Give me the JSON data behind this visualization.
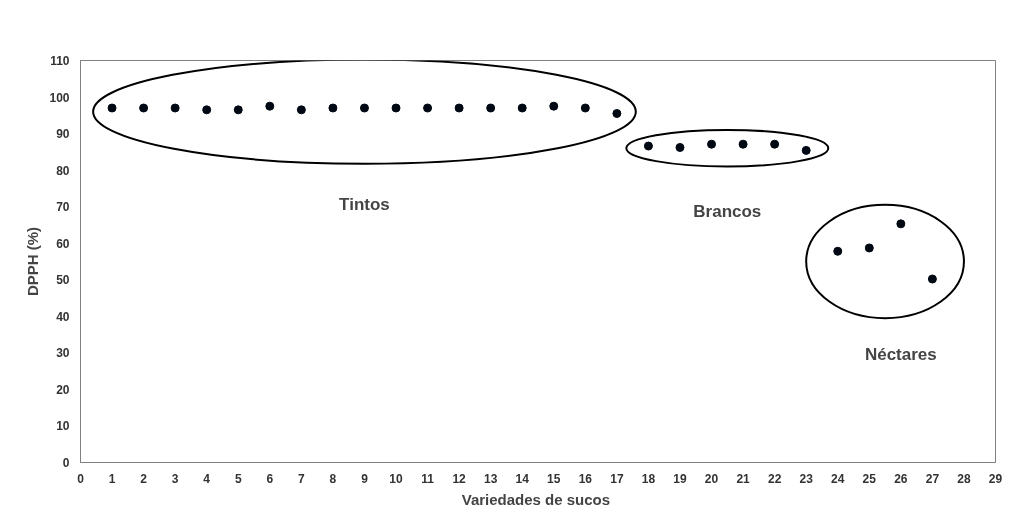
{
  "chart_data": {
    "type": "scatter",
    "xlabel": "Variedades  de sucos",
    "ylabel": "DPPH (%)",
    "x": [
      1,
      2,
      3,
      4,
      5,
      6,
      7,
      8,
      9,
      10,
      11,
      12,
      13,
      14,
      15,
      16,
      17,
      18,
      19,
      20,
      21,
      22,
      23,
      24,
      25,
      26,
      27
    ],
    "series": [
      {
        "color": "#000814",
        "values": [
          97,
          97,
          97,
          96.5,
          96.5,
          97.5,
          96.5,
          97,
          97,
          97,
          97,
          97,
          97,
          97,
          97.5,
          97,
          95.5,
          86.6,
          86.2,
          87.1,
          87.1,
          87.1,
          85.4,
          57.8,
          58.7,
          65.3,
          50.2
        ]
      }
    ],
    "xlim": [
      0,
      29
    ],
    "xticks": [
      0,
      1,
      2,
      3,
      4,
      5,
      6,
      7,
      8,
      9,
      10,
      11,
      12,
      13,
      14,
      15,
      16,
      17,
      18,
      19,
      20,
      21,
      22,
      23,
      24,
      25,
      26,
      27,
      28,
      29
    ],
    "ylim": [
      0,
      110
    ],
    "yticks": [
      0,
      10,
      20,
      30,
      40,
      50,
      60,
      70,
      80,
      90,
      100,
      110
    ],
    "grid": false,
    "marker": "circle",
    "annotations": [
      "Tintos",
      "Brancos",
      "Néctares"
    ]
  }
}
